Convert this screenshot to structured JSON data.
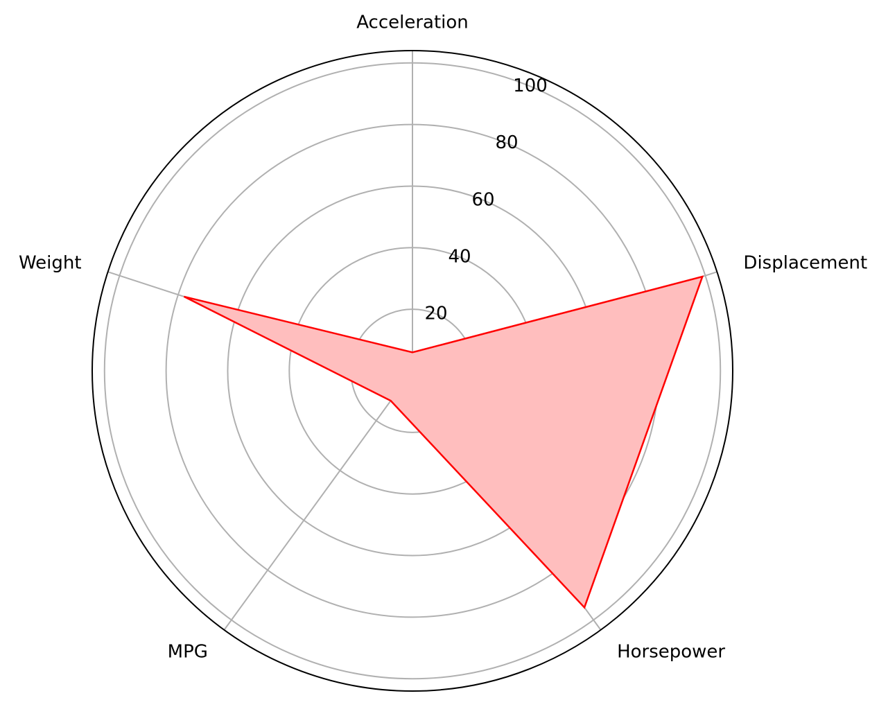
{
  "chart_data": {
    "type": "radar",
    "categories": [
      "Acceleration",
      "Displacement",
      "Horsepower",
      "MPG",
      "Weight"
    ],
    "series": [
      {
        "values": [
          6,
          99,
          95,
          12,
          78
        ]
      }
    ],
    "rlim": [
      0,
      104
    ],
    "rticks": [
      20,
      40,
      60,
      80,
      100
    ],
    "tick_labels": [
      "20",
      "40",
      "60",
      "80",
      "100"
    ],
    "grid": true,
    "colors": {
      "line": "#ff0000",
      "fill": "#ffbebe",
      "grid": "#b0b0b0",
      "frame": "#000000"
    }
  }
}
